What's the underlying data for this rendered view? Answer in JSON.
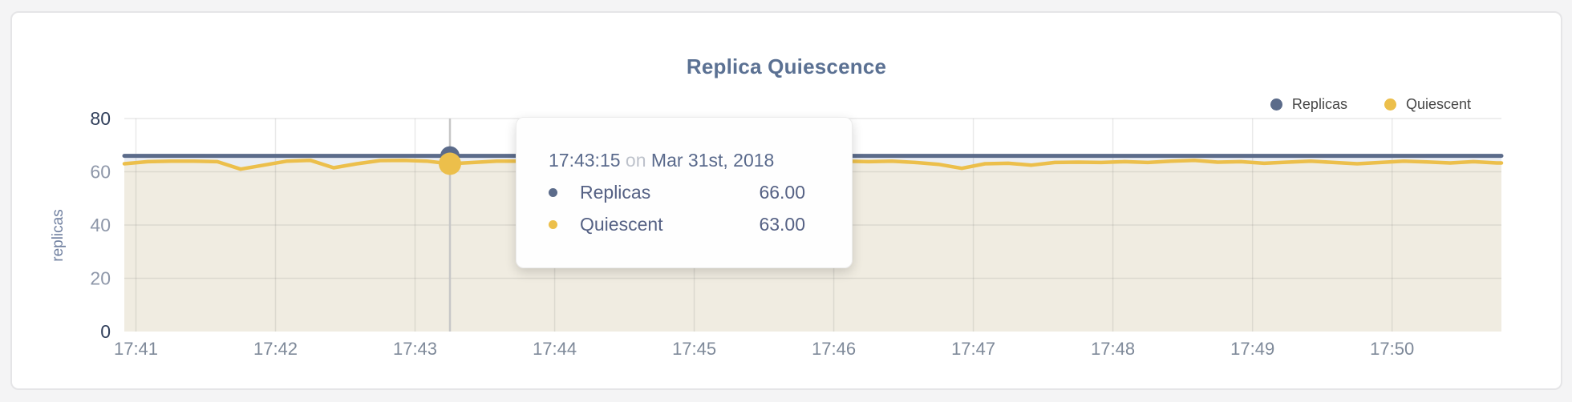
{
  "page": {
    "background": "#f4f4f5",
    "card_background": "#ffffff",
    "card_border": "#e5e5e7"
  },
  "header": {
    "title": "Replica Quiescence"
  },
  "tooltip": {
    "time": "17:43:15",
    "on_word": "on",
    "date": "Mar 31st, 2018",
    "rows": [
      {
        "label": "Replicas",
        "value": "66.00"
      },
      {
        "label": "Quiescent",
        "value": "63.00"
      }
    ]
  },
  "chart_data": {
    "type": "line",
    "title": "Replica Quiescence",
    "xlabel": "",
    "ylabel": "replicas",
    "ylim": [
      0,
      80
    ],
    "yticks": [
      0,
      20,
      40,
      60,
      80
    ],
    "xticks": [
      "17:41",
      "17:42",
      "17:43",
      "17:44",
      "17:45",
      "17:46",
      "17:47",
      "17:48",
      "17:49",
      "17:50"
    ],
    "x_start": "17:40:55",
    "x_end": "17:50:47",
    "step_seconds": 10,
    "grid": true,
    "legend_position": "top-right",
    "series": [
      {
        "name": "Replicas",
        "color": "#5b6b8a",
        "fill": "#e9edf3",
        "constant": 66
      },
      {
        "name": "Quiescent",
        "color": "#ecbf4b",
        "fill": "#f0ece1",
        "start": "17:40:55",
        "values": [
          63,
          63.8,
          64,
          64,
          63.8,
          61,
          62.5,
          64,
          64.3,
          61.5,
          63,
          64.2,
          64.3,
          64,
          63,
          63.5,
          64,
          64,
          63.5,
          64,
          63.7,
          64,
          63,
          63.5,
          64,
          63.8,
          63.2,
          64,
          63.6,
          64,
          63.4,
          64,
          63.8,
          64,
          63.5,
          62.8,
          61.3,
          63,
          63.2,
          62.5,
          63.5,
          63.6,
          63.5,
          63.8,
          63.5,
          64,
          64.3,
          63.6,
          63.8,
          63.2,
          63.6,
          64,
          63.5,
          63,
          63.5,
          64,
          63.7,
          63.3,
          63.8,
          63.3
        ]
      }
    ],
    "hover": {
      "time": "17:43:15",
      "date": "Mar 31st, 2018",
      "values": {
        "Replicas": 66,
        "Quiescent": 63
      }
    },
    "colors": {
      "grid": "rgba(120,120,120,0.16)",
      "crosshair": "#c7c7c7",
      "tick_strong": "#32405c",
      "tick_light": "#8e97a9",
      "x_tick": "#7e8999"
    }
  }
}
